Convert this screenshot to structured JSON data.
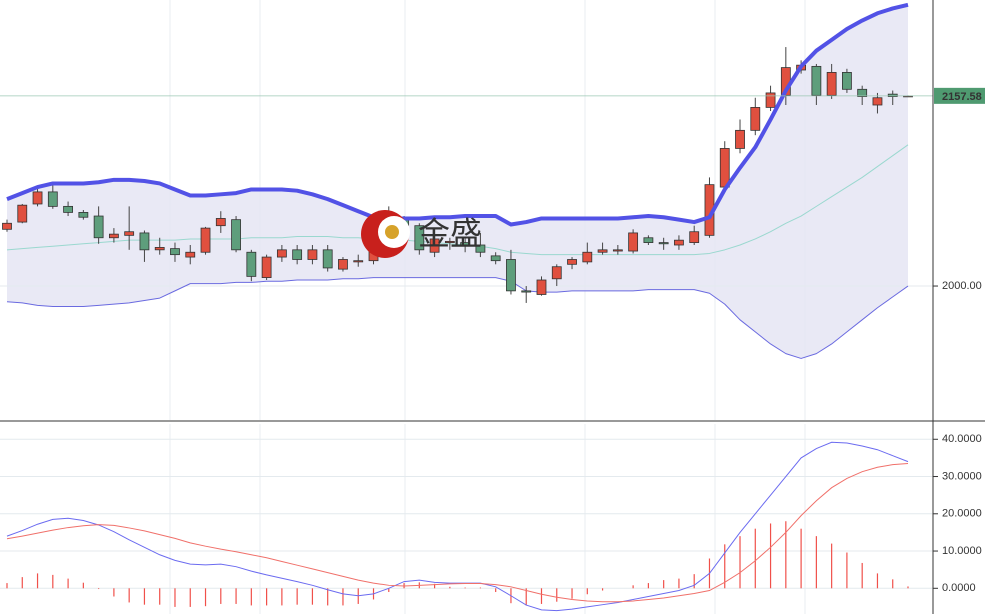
{
  "chart_data": [
    {
      "type": "candlestick",
      "watermark": "金盛",
      "up_color": "#e0503f",
      "down_color": "#5e9e7c",
      "open": [
        2047,
        2053,
        2068,
        2078,
        2066,
        2061,
        2058,
        2040,
        2042,
        2044,
        2030,
        2031,
        2024,
        2028,
        2050,
        2055,
        2028,
        2007,
        2024,
        2030,
        2022,
        2030,
        2014,
        2020,
        2021,
        2040,
        2055,
        2050,
        2028,
        2036,
        2036,
        2034,
        2025,
        2022,
        1996,
        1993,
        2006,
        2018,
        2020,
        2028,
        2029,
        2029,
        2040,
        2036,
        2034,
        2036,
        2042,
        2082,
        2114,
        2129,
        2148,
        2158,
        2179,
        2182,
        2158,
        2177,
        2163,
        2150,
        2159,
        2157.58
      ],
      "high": [
        2055,
        2068,
        2083,
        2086,
        2070,
        2063,
        2066,
        2048,
        2066,
        2046,
        2040,
        2036,
        2034,
        2049,
        2062,
        2058,
        2030,
        2026,
        2034,
        2034,
        2034,
        2034,
        2024,
        2026,
        2036,
        2066,
        2058,
        2052,
        2042,
        2040,
        2040,
        2044,
        2028,
        2030,
        2000,
        2008,
        2018,
        2024,
        2036,
        2036,
        2034,
        2047,
        2042,
        2040,
        2042,
        2050,
        2090,
        2120,
        2138,
        2156,
        2166,
        2198,
        2187,
        2184,
        2184,
        2180,
        2166,
        2160,
        2162,
        2158
      ],
      "low": [
        2045,
        2052,
        2066,
        2064,
        2058,
        2055,
        2035,
        2036,
        2030,
        2020,
        2026,
        2020,
        2018,
        2026,
        2044,
        2028,
        2004,
        2005,
        2020,
        2018,
        2018,
        2012,
        2012,
        2016,
        2018,
        2035,
        2045,
        2026,
        2024,
        2030,
        2028,
        2024,
        2018,
        1993,
        1986,
        1992,
        2000,
        2014,
        2018,
        2026,
        2026,
        2027,
        2034,
        2030,
        2030,
        2034,
        2040,
        2080,
        2110,
        2125,
        2145,
        2150,
        2176,
        2150,
        2155,
        2160,
        2150,
        2143,
        2150,
        2157
      ],
      "close": [
        2052,
        2067,
        2078,
        2066,
        2061,
        2057,
        2040,
        2043,
        2045,
        2030,
        2032,
        2026,
        2028,
        2048,
        2056,
        2030,
        2008,
        2024,
        2030,
        2022,
        2030,
        2015,
        2022,
        2021,
        2034,
        2054,
        2050,
        2030,
        2039,
        2037,
        2034,
        2028,
        2021,
        1996,
        1995,
        2005,
        2016,
        2022,
        2028,
        2030,
        2030,
        2044,
        2036,
        2035,
        2038,
        2045,
        2084,
        2114,
        2129,
        2148,
        2160,
        2181,
        2183,
        2158,
        2177,
        2163,
        2157,
        2156,
        2157,
        2157.58
      ],
      "overlays": [
        {
          "color": "#9ad8cf",
          "width": 1,
          "values": [
            2030,
            2031,
            2032,
            2033,
            2034,
            2035,
            2036,
            2037,
            2038,
            2038,
            2038,
            2038,
            2039,
            2039,
            2039,
            2039,
            2040,
            2040,
            2040,
            2041,
            2041,
            2041,
            2040,
            2040,
            2039,
            2038,
            2038,
            2037,
            2036,
            2035,
            2034,
            2033,
            2031,
            2028,
            2027,
            2026,
            2026,
            2026,
            2026,
            2026,
            2026,
            2026,
            2026,
            2026,
            2026,
            2026,
            2027,
            2030,
            2034,
            2039,
            2045,
            2052,
            2058,
            2066,
            2074,
            2082,
            2090,
            2099,
            2108,
            2117
          ]
        },
        {
          "color": "#6a6ae0",
          "width": 1,
          "values": [
            1987,
            1986,
            1984,
            1983,
            1983,
            1983,
            1984,
            1985,
            1986,
            1988,
            1990,
            1996,
            2002,
            2002,
            2002,
            2003,
            2003,
            2004,
            2004,
            2005,
            2005,
            2005,
            2006,
            2006,
            2007,
            2007,
            2007,
            2007,
            2007,
            2007,
            2007,
            2007,
            2007,
            2004,
            1996,
            1995,
            1995,
            1996,
            1996,
            1996,
            1996,
            1996,
            1997,
            1997,
            1997,
            1997,
            1994,
            1985,
            1972,
            1962,
            1952,
            1944,
            1940,
            1944,
            1952,
            1962,
            1972,
            1982,
            1991,
            2000
          ]
        },
        {
          "color": "#5252e6",
          "width": 4,
          "values": [
            2072,
            2077,
            2082,
            2085,
            2085,
            2085,
            2086,
            2088,
            2088,
            2087,
            2085,
            2080,
            2075,
            2075,
            2076,
            2077,
            2080,
            2080,
            2080,
            2079,
            2076,
            2072,
            2067,
            2062,
            2057,
            2056,
            2056,
            2056,
            2057,
            2057,
            2058,
            2058,
            2058,
            2051,
            2053,
            2056,
            2056,
            2056,
            2056,
            2056,
            2056,
            2057,
            2058,
            2057,
            2055,
            2053,
            2057,
            2080,
            2098,
            2115,
            2138,
            2162,
            2182,
            2195,
            2204,
            2213,
            2220,
            2226,
            2230,
            2233
          ]
        }
      ],
      "band_fill": "#e4e4f2",
      "last_price": 2157.58,
      "last_price_color": "#4f9a70",
      "ylim": [
        1889,
        2237
      ],
      "yticks": [
        {
          "value": 2000,
          "label": "2000.00"
        }
      ],
      "grid": true
    },
    {
      "type": "macd",
      "series": [
        {
          "color": "#6b6bf0",
          "values": [
            14.0,
            15.5,
            17.2,
            18.5,
            18.8,
            18.2,
            17.0,
            15.2,
            13.0,
            11.0,
            9.0,
            7.5,
            6.5,
            6.3,
            6.5,
            5.8,
            4.6,
            3.6,
            2.7,
            1.8,
            0.8,
            -0.4,
            -1.5,
            -2.0,
            -1.5,
            0.0,
            1.8,
            2.2,
            1.6,
            1.4,
            1.4,
            1.4,
            0.4,
            -2.0,
            -4.5,
            -5.8,
            -6.0,
            -5.6,
            -5.0,
            -4.4,
            -3.8,
            -3.0,
            -2.2,
            -1.4,
            -0.6,
            0.8,
            4.0,
            9.5,
            15.0,
            20.0,
            25.0,
            30.0,
            35.0,
            37.5,
            39.2,
            39.0,
            38.2,
            37.2,
            35.6,
            34.0
          ]
        },
        {
          "color": "#f0706a",
          "values": [
            13.3,
            14.0,
            14.8,
            15.6,
            16.3,
            16.8,
            17.1,
            16.9,
            16.2,
            15.4,
            14.4,
            13.4,
            12.2,
            11.3,
            10.5,
            9.8,
            9.0,
            8.2,
            7.2,
            6.2,
            5.2,
            4.2,
            3.2,
            2.2,
            1.4,
            0.8,
            0.6,
            0.8,
            1.0,
            1.2,
            1.3,
            1.3,
            1.0,
            0.4,
            -0.6,
            -1.6,
            -2.4,
            -3.0,
            -3.4,
            -3.6,
            -3.6,
            -3.4,
            -3.0,
            -2.6,
            -2.0,
            -1.4,
            -0.6,
            1.6,
            4.2,
            7.4,
            11.0,
            15.0,
            19.5,
            23.5,
            27.0,
            29.5,
            31.3,
            32.5,
            33.2,
            33.5
          ]
        }
      ],
      "histogram": {
        "color": "#f0504a",
        "values": [
          1.4,
          3.0,
          4.0,
          3.6,
          2.6,
          1.5,
          -0.2,
          -2.2,
          -3.8,
          -4.4,
          -4.4,
          -5.0,
          -5.0,
          -4.8,
          -4.2,
          -4.2,
          -4.6,
          -4.6,
          -4.6,
          -4.4,
          -4.4,
          -4.6,
          -4.6,
          -4.2,
          -3.0,
          -1.0,
          1.4,
          1.6,
          1.2,
          0.4,
          0.2,
          0.2,
          -1.0,
          -4.0,
          -4.6,
          -4.2,
          -3.6,
          -2.8,
          -1.6,
          -0.6,
          0.0,
          0.8,
          1.4,
          2.2,
          2.6,
          3.8,
          8.0,
          11.8,
          14.0,
          16.0,
          17.4,
          18.0,
          16.0,
          14.0,
          12.0,
          9.6,
          6.8,
          4.0,
          2.4,
          0.5
        ]
      },
      "ylim": [
        -6.9,
        44.1
      ],
      "yticks": [
        {
          "value": 0,
          "label": "0.0000"
        },
        {
          "value": 10,
          "label": "10.0000"
        },
        {
          "value": 20,
          "label": "20.0000"
        },
        {
          "value": 30,
          "label": "30.0000"
        },
        {
          "value": 40,
          "label": "40.0000"
        }
      ],
      "grid": true
    }
  ]
}
